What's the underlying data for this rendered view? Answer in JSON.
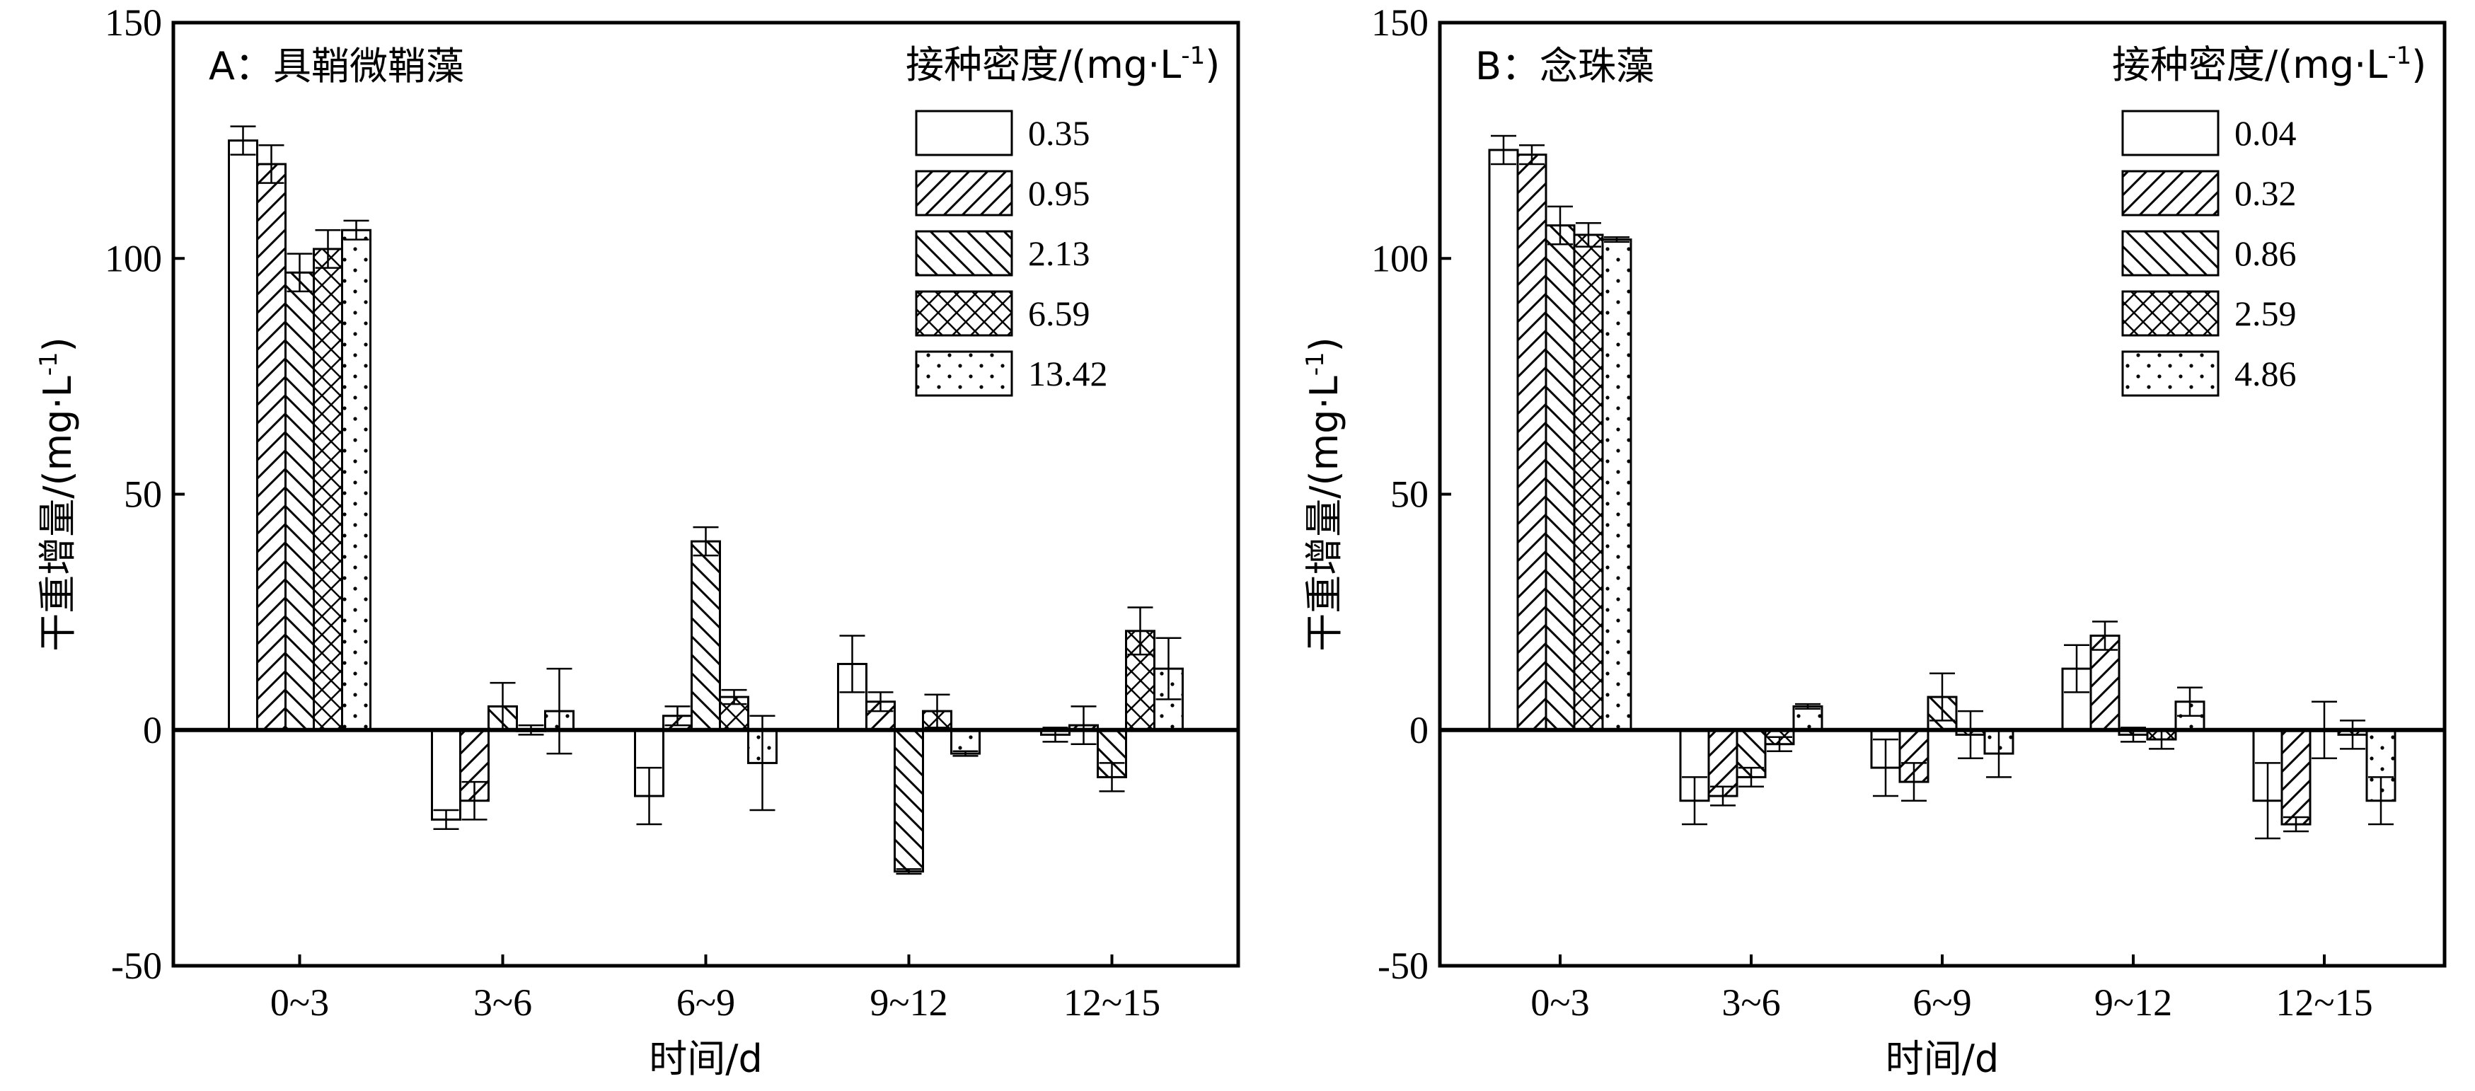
{
  "chart_data": [
    {
      "type": "bar",
      "title": "",
      "panel_label": "A：具鞘微鞘藻",
      "xlabel": "时间/d",
      "ylabel": "干重增量/(mg·L",
      "ylabel_sup": "-1",
      "ylabel_end": ")",
      "ylim": [
        -50,
        150
      ],
      "yticks": [
        "-50",
        "0",
        "50",
        "100",
        "150"
      ],
      "categories": [
        "0~3",
        "3~6",
        "6~9",
        "9~12",
        "12~15"
      ],
      "legend_title": "接种密度/(mg·L",
      "legend_title_sup": "-1",
      "legend_title_end": ")",
      "legend_position": "top-right",
      "series": [
        {
          "name": "0.35",
          "pattern": "none",
          "values": [
            125,
            -19,
            -14,
            14,
            -1
          ],
          "errors": [
            3,
            2,
            6,
            6,
            1.5
          ]
        },
        {
          "name": "0.95",
          "pattern": "fwd",
          "values": [
            120,
            -15,
            3,
            6,
            1
          ],
          "errors": [
            4,
            4,
            2,
            2,
            4
          ]
        },
        {
          "name": "2.13",
          "pattern": "back",
          "values": [
            97,
            5,
            40,
            -30,
            -10
          ],
          "errors": [
            4,
            5,
            3,
            0.5,
            3
          ]
        },
        {
          "name": "6.59",
          "pattern": "cross",
          "values": [
            102,
            0,
            7,
            4,
            21
          ],
          "errors": [
            4,
            1,
            1.5,
            3.5,
            5
          ]
        },
        {
          "name": "13.42",
          "pattern": "dots",
          "values": [
            106,
            4,
            -7,
            -5,
            13
          ],
          "errors": [
            2,
            9,
            10,
            0.5,
            6.5
          ]
        }
      ]
    },
    {
      "type": "bar",
      "title": "",
      "panel_label": "B：念珠藻",
      "xlabel": "时间/d",
      "ylabel": "干重增量/(mg·L",
      "ylabel_sup": "-1",
      "ylabel_end": ")",
      "ylim": [
        -50,
        150
      ],
      "yticks": [
        "-50",
        "0",
        "50",
        "100",
        "150"
      ],
      "categories": [
        "0~3",
        "3~6",
        "6~9",
        "9~12",
        "12~15"
      ],
      "legend_title": "接种密度/(mg·L",
      "legend_title_sup": "-1",
      "legend_title_end": ")",
      "legend_position": "top-right",
      "series": [
        {
          "name": "0.04",
          "pattern": "none",
          "values": [
            123,
            -15,
            -8,
            13,
            -15
          ],
          "errors": [
            3,
            5,
            6,
            5,
            8
          ]
        },
        {
          "name": "0.32",
          "pattern": "fwd",
          "values": [
            122,
            -14,
            -11,
            20,
            -20
          ],
          "errors": [
            2,
            2,
            4,
            3,
            1.5
          ]
        },
        {
          "name": "0.86",
          "pattern": "back",
          "values": [
            107,
            -10,
            7,
            -1,
            0
          ],
          "errors": [
            4,
            2,
            5,
            1.5,
            6
          ]
        },
        {
          "name": "2.59",
          "pattern": "cross",
          "values": [
            105,
            -3,
            -1,
            -2,
            -1
          ],
          "errors": [
            2.5,
            1.5,
            5,
            2,
            3
          ]
        },
        {
          "name": "4.86",
          "pattern": "dots",
          "values": [
            104,
            5,
            -5,
            6,
            -15
          ],
          "errors": [
            0.5,
            0.5,
            5,
            3,
            5
          ]
        }
      ]
    }
  ]
}
